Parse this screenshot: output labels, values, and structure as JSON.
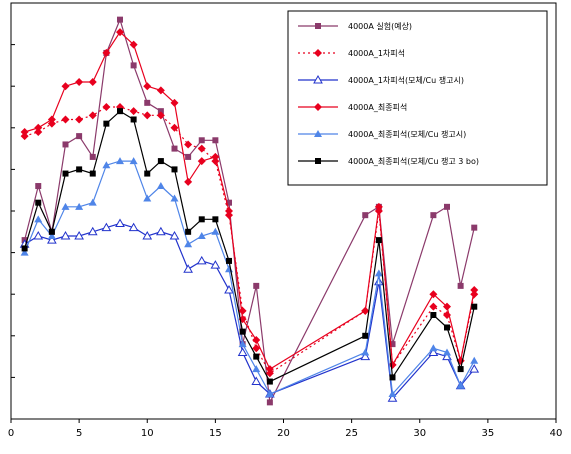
{
  "chart_data": {
    "type": "line",
    "title": "",
    "xlabel": "",
    "ylabel": "",
    "xlim": [
      0,
      40
    ],
    "ylim": [
      0,
      10
    ],
    "xticks": [
      "0",
      "5",
      "10",
      "15",
      "20",
      "25",
      "30",
      "35",
      "40"
    ],
    "grid": false,
    "legend_position": "top-right",
    "series": [
      {
        "name": "4000A 실험(예상)",
        "color": "#8B3A6B",
        "marker": "square",
        "line": "solid",
        "x": [
          1,
          2,
          3,
          4,
          5,
          6,
          7,
          8,
          9,
          10,
          11,
          12,
          13,
          14,
          15,
          16,
          17,
          18,
          19,
          26,
          27,
          28,
          31,
          32,
          33,
          34
        ],
        "y": [
          4.3,
          5.6,
          4.5,
          6.6,
          6.8,
          6.3,
          8.8,
          9.6,
          8.5,
          7.6,
          7.4,
          6.5,
          6.3,
          6.7,
          6.7,
          5.2,
          1.8,
          3.2,
          0.4,
          4.9,
          5.1,
          1.8,
          4.9,
          5.1,
          3.2,
          4.6
        ]
      },
      {
        "name": "4000A_1차피석",
        "color": "#E8001E",
        "marker": "diamond",
        "line": "dotted",
        "x": [
          1,
          2,
          3,
          4,
          5,
          6,
          7,
          8,
          9,
          10,
          11,
          12,
          13,
          14,
          15,
          16,
          17,
          18,
          19,
          26,
          27,
          28,
          31,
          32,
          33,
          34
        ],
        "y": [
          6.8,
          6.9,
          7.1,
          7.2,
          7.2,
          7.3,
          7.5,
          7.5,
          7.4,
          7.3,
          7.3,
          7.0,
          6.6,
          6.5,
          6.2,
          4.9,
          2.6,
          1.7,
          1.1,
          2.6,
          5.0,
          1.3,
          2.7,
          2.5,
          1.4,
          3.0
        ]
      },
      {
        "name": "4000A_1차피석(모체/Cu 쟁고시)",
        "color": "#2233CC",
        "marker": "triangle-open",
        "line": "solid",
        "x": [
          1,
          2,
          3,
          4,
          5,
          6,
          7,
          8,
          9,
          10,
          11,
          12,
          13,
          14,
          15,
          16,
          17,
          18,
          19,
          26,
          27,
          28,
          31,
          32,
          33,
          34
        ],
        "y": [
          4.2,
          4.4,
          4.3,
          4.4,
          4.4,
          4.5,
          4.6,
          4.7,
          4.6,
          4.4,
          4.5,
          4.4,
          3.6,
          3.8,
          3.7,
          3.1,
          1.6,
          0.9,
          0.6,
          1.5,
          3.3,
          0.5,
          1.6,
          1.5,
          0.8,
          1.2
        ]
      },
      {
        "name": "4000A_최종피석",
        "color": "#E8001E",
        "marker": "diamond",
        "line": "solid",
        "x": [
          1,
          2,
          3,
          4,
          5,
          6,
          7,
          8,
          9,
          10,
          11,
          12,
          13,
          14,
          15,
          16,
          17,
          18,
          19,
          26,
          27,
          28,
          31,
          32,
          33,
          34
        ],
        "y": [
          6.9,
          7.0,
          7.2,
          8.0,
          8.1,
          8.1,
          8.8,
          9.3,
          9.0,
          8.0,
          7.9,
          7.6,
          5.7,
          6.2,
          6.3,
          5.0,
          2.4,
          1.9,
          1.2,
          2.6,
          5.1,
          1.3,
          3.0,
          2.7,
          1.4,
          3.1
        ]
      },
      {
        "name": "4000A_최종피석(모체/Cu 쟁고시)",
        "color": "#4F85E8",
        "marker": "triangle",
        "line": "solid",
        "x": [
          1,
          2,
          3,
          4,
          5,
          6,
          7,
          8,
          9,
          10,
          11,
          12,
          13,
          14,
          15,
          16,
          17,
          18,
          19,
          26,
          27,
          28,
          31,
          32,
          33,
          34
        ],
        "y": [
          4.0,
          4.8,
          4.4,
          5.1,
          5.1,
          5.2,
          6.1,
          6.2,
          6.2,
          5.3,
          5.6,
          5.3,
          4.2,
          4.4,
          4.5,
          3.6,
          1.8,
          1.2,
          0.6,
          1.6,
          3.5,
          0.6,
          1.7,
          1.6,
          0.8,
          1.4
        ]
      },
      {
        "name": "4000A_최종피석(모체/Cu 쟁고 3 bo)",
        "color": "#000000",
        "marker": "square",
        "line": "solid",
        "x": [
          1,
          2,
          3,
          4,
          5,
          6,
          7,
          8,
          9,
          10,
          11,
          12,
          13,
          14,
          15,
          16,
          17,
          18,
          19,
          26,
          27,
          28,
          31,
          32,
          33,
          34
        ],
        "y": [
          4.1,
          5.2,
          4.5,
          5.9,
          6.0,
          5.9,
          7.1,
          7.4,
          7.2,
          5.9,
          6.2,
          6.0,
          4.5,
          4.8,
          4.8,
          3.8,
          2.1,
          1.5,
          0.9,
          2.0,
          4.3,
          1.0,
          2.5,
          2.2,
          1.2,
          2.7
        ]
      }
    ]
  }
}
